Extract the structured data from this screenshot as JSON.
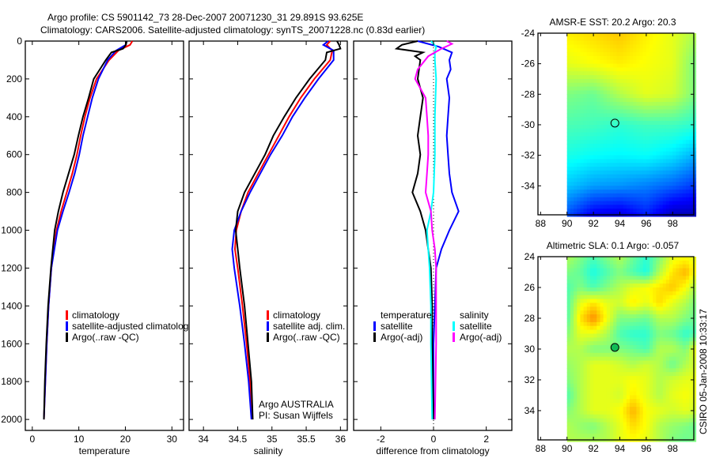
{
  "title_line1": "Argo profile: CS 5901142_73 28-Dec-2007 20071230_31 29.891S 93.625E",
  "title_line2": "Climatology: CARS2006. Satellite-adjusted climatology: synTS_20071228.nc (0.83d earlier)",
  "side_label": "CSIRO 05-Jan-2008 10:33:17",
  "colors": {
    "red": "#ff0000",
    "blue": "#0000ff",
    "black": "#000000",
    "cyan": "#00ffff",
    "magenta": "#ff00ff"
  },
  "chart_data": [
    {
      "type": "line",
      "xlabel": "temperature",
      "ylabel": "",
      "xlim": [
        -1.5,
        32.5
      ],
      "ylim": [
        2058,
        0
      ],
      "xticks": [
        0,
        10,
        20,
        30
      ],
      "xtick_labels": [
        "0",
        "10",
        "20",
        "30"
      ],
      "yticks": [
        0,
        200,
        400,
        600,
        800,
        1000,
        1200,
        1400,
        1600,
        1800,
        2000
      ],
      "ytick_labels": [
        "0",
        "200",
        "400",
        "600",
        "800",
        "1000",
        "1200",
        "1400",
        "1600",
        "1800",
        "2000"
      ],
      "legend": [
        "climatology",
        "satellite-adjusted climatology",
        "Argo(..raw -QC)"
      ],
      "legend_placement": "bottom-right",
      "series": [
        {
          "name": "climatology",
          "color": "#ff0000",
          "depth": [
            0,
            20,
            50,
            100,
            200,
            300,
            400,
            500,
            600,
            700,
            800,
            900,
            1000,
            1200,
            1400,
            1600,
            1800,
            2000
          ],
          "values": [
            21.5,
            21,
            18.5,
            16.5,
            13.8,
            12.4,
            11.3,
            10.4,
            9.6,
            8.6,
            7.4,
            6.2,
            5.2,
            4.1,
            3.5,
            3.1,
            2.8,
            2.5
          ]
        },
        {
          "name": "satellite-adjusted climatology",
          "color": "#0000ff",
          "depth": [
            0,
            20,
            50,
            100,
            200,
            300,
            400,
            500,
            600,
            700,
            800,
            900,
            1000,
            1200,
            1400,
            1600,
            1800,
            2000
          ],
          "values": [
            20.3,
            20.1,
            18,
            16.2,
            14.2,
            12.9,
            11.9,
            10.9,
            10.1,
            9.1,
            7.9,
            6.6,
            5.4,
            4.1,
            3.5,
            3.1,
            2.8,
            2.5
          ]
        },
        {
          "name": "Argo(..raw -QC)",
          "color": "#000000",
          "depth": [
            0,
            20,
            40,
            60,
            100,
            200,
            300,
            400,
            500,
            600,
            700,
            800,
            900,
            1000,
            1200,
            1400,
            1600,
            1800,
            2000
          ],
          "values": [
            20.3,
            20.1,
            19.5,
            17,
            15.8,
            13.2,
            12.1,
            10.9,
            9.9,
            9.0,
            7.8,
            6.6,
            5.6,
            4.8,
            4.0,
            3.4,
            3.0,
            2.7,
            2.5
          ]
        }
      ]
    },
    {
      "type": "line",
      "xlabel": "salinity",
      "xlim": [
        33.79,
        36.1
      ],
      "ylim": [
        2058,
        0
      ],
      "xticks": [
        34,
        34.5,
        35,
        35.5,
        36
      ],
      "xtick_labels": [
        "34",
        "34.5",
        "35",
        "35.5",
        "36"
      ],
      "legend": [
        "climatology",
        "satellite adj. clim.",
        "Argo(..raw -QC)"
      ],
      "legend_placement": "bottom-right",
      "annotation": [
        "Argo AUSTRALIA",
        "PI: Susan Wijffels"
      ],
      "series": [
        {
          "name": "climatology",
          "color": "#ff0000",
          "depth": [
            0,
            20,
            50,
            100,
            200,
            300,
            400,
            500,
            600,
            700,
            800,
            900,
            1000,
            1100,
            1200,
            1400,
            1600,
            1800,
            2000
          ],
          "values": [
            35.85,
            35.8,
            35.88,
            35.85,
            35.62,
            35.42,
            35.25,
            35.1,
            34.95,
            34.8,
            34.65,
            34.55,
            34.48,
            34.46,
            34.5,
            34.57,
            34.63,
            34.68,
            34.71
          ]
        },
        {
          "name": "satellite adj. clim.",
          "color": "#0000ff",
          "depth": [
            0,
            20,
            50,
            100,
            200,
            300,
            400,
            500,
            600,
            700,
            800,
            900,
            1000,
            1100,
            1200,
            1400,
            1600,
            1800,
            2000
          ],
          "values": [
            35.82,
            35.75,
            35.9,
            35.9,
            35.68,
            35.48,
            35.3,
            35.15,
            34.98,
            34.83,
            34.68,
            34.55,
            34.45,
            34.42,
            34.45,
            34.53,
            34.6,
            34.66,
            34.7
          ]
        },
        {
          "name": "Argo(..raw -QC)",
          "color": "#000000",
          "depth": [
            0,
            20,
            40,
            60,
            100,
            200,
            300,
            400,
            500,
            600,
            700,
            800,
            900,
            1000,
            1100,
            1200,
            1400,
            1600,
            1800,
            2000
          ],
          "values": [
            35.95,
            35.98,
            36.0,
            35.8,
            35.78,
            35.55,
            35.35,
            35.18,
            35.02,
            34.9,
            34.75,
            34.6,
            34.5,
            34.47,
            34.5,
            34.53,
            34.6,
            34.65,
            34.7,
            34.72
          ]
        }
      ]
    },
    {
      "type": "line",
      "xlabel": "difference from climatology",
      "xlim": [
        -3.03,
        2.97
      ],
      "ylim": [
        2058,
        0
      ],
      "xticks": [
        -2,
        0,
        2
      ],
      "xtick_labels": [
        "-2",
        "0",
        "2"
      ],
      "legend_groups": [
        {
          "title": "temperature",
          "entries": [
            "satellite",
            "Argo(-adj)"
          ]
        },
        {
          "title": "salinity",
          "entries": [
            "satellite",
            "Argo(-adj)"
          ]
        }
      ],
      "legend_placement": "middle",
      "series": [
        {
          "name": "temperature satellite",
          "color": "#0000ff",
          "depth": [
            0,
            30,
            60,
            100,
            150,
            200,
            300,
            400,
            500,
            600,
            700,
            800,
            900,
            1000,
            1100,
            1200,
            1400,
            1600,
            2000
          ],
          "values": [
            -0.6,
            0.2,
            0.7,
            0.6,
            0.65,
            0.5,
            0.6,
            0.55,
            0.5,
            0.55,
            0.6,
            0.7,
            0.95,
            0.6,
            0.3,
            0.1,
            0.05,
            0.0,
            0.0
          ]
        },
        {
          "name": "temperature Argo(-adj)",
          "color": "#000000",
          "depth": [
            0,
            20,
            40,
            60,
            80,
            100,
            200,
            300,
            400,
            500,
            600,
            700,
            800,
            900,
            1000,
            1100,
            1200,
            1400,
            1600,
            2000
          ],
          "values": [
            -0.6,
            -1.2,
            -1.4,
            -0.4,
            -0.7,
            -0.5,
            -0.6,
            -0.4,
            -0.5,
            -0.6,
            -0.5,
            -0.6,
            -0.8,
            -0.5,
            -0.3,
            -0.2,
            -0.1,
            -0.05,
            -0.05,
            0.0
          ]
        },
        {
          "name": "salinity satellite",
          "color": "#00ffff",
          "depth": [
            0,
            30,
            60,
            100,
            200,
            400,
            600,
            800,
            900,
            1000,
            1100,
            1200,
            1400,
            1600,
            2000
          ],
          "values": [
            -0.1,
            0.1,
            0.05,
            0.05,
            0.1,
            0.05,
            0.05,
            0.0,
            -0.1,
            -0.25,
            -0.2,
            -0.15,
            -0.1,
            -0.1,
            -0.05
          ]
        },
        {
          "name": "salinity Argo(-adj)",
          "color": "#ff00ff",
          "depth": [
            0,
            15,
            40,
            80,
            150,
            200,
            300,
            400,
            500,
            600,
            700,
            800,
            900,
            1000,
            1100,
            1200,
            1400,
            1600,
            2000
          ],
          "values": [
            0.5,
            0.7,
            0.3,
            -0.2,
            -0.6,
            -0.7,
            -0.3,
            -0.25,
            -0.2,
            -0.2,
            -0.25,
            -0.3,
            -0.1,
            -0.05,
            0.05,
            0.1,
            0.1,
            0.1,
            0.05
          ]
        }
      ]
    },
    {
      "type": "heatmap",
      "title": "AMSR-E SST: 20.2 Argo: 20.3",
      "xlim": [
        87.8,
        99.6
      ],
      "ylim": [
        -35.9,
        -24
      ],
      "xticks": [
        88,
        90,
        92,
        94,
        96,
        98
      ],
      "xtick_labels": [
        "88",
        "90",
        "92",
        "94",
        "96",
        "98"
      ],
      "yticks": [
        -24,
        -26,
        -28,
        -30,
        -32,
        -34
      ],
      "ytick_labels": [
        "-24",
        "-26",
        "-28",
        "-30",
        "-32",
        "-34"
      ],
      "data_lon_range": [
        90,
        99.6
      ],
      "data_lat_range": [
        -36,
        -24
      ],
      "grid_lat": [
        -24,
        -26,
        -28,
        -30,
        -32,
        -34,
        -36
      ],
      "grid_lon": [
        90,
        92,
        94,
        96,
        98,
        99.6
      ],
      "normalized_values": [
        [
          0.64,
          0.66,
          0.68,
          0.64,
          0.6,
          0.55
        ],
        [
          0.6,
          0.62,
          0.64,
          0.62,
          0.6,
          0.5
        ],
        [
          0.5,
          0.48,
          0.55,
          0.6,
          0.58,
          0.5
        ],
        [
          0.45,
          0.44,
          0.42,
          0.44,
          0.44,
          0.42
        ],
        [
          0.4,
          0.38,
          0.37,
          0.38,
          0.35,
          0.3
        ],
        [
          0.32,
          0.28,
          0.27,
          0.25,
          0.22,
          0.18
        ],
        [
          0.2,
          0.1,
          0.08,
          0.15,
          0.05,
          0.05
        ]
      ],
      "marker": {
        "lon": 93.625,
        "lat": -29.891
      }
    },
    {
      "type": "heatmap",
      "title": "Altimetric SLA: 0.1 Argo: -0.057",
      "xlim": [
        87.8,
        99.6
      ],
      "ylim": [
        -35.9,
        -24
      ],
      "xticks": [
        88,
        90,
        92,
        94,
        96,
        98
      ],
      "xtick_labels": [
        "88",
        "90",
        "92",
        "94",
        "96",
        "98"
      ],
      "yticks": [
        -24,
        -26,
        -28,
        -30,
        -32,
        -34
      ],
      "ytick_labels": [
        "24",
        "26",
        "28",
        "30",
        "32",
        "34"
      ],
      "data_lon_range": [
        90,
        99.6
      ],
      "data_lat_range": [
        -36,
        -24
      ],
      "grid_lat": [
        -24,
        -25,
        -26,
        -27,
        -28,
        -29,
        -30,
        -31,
        -32,
        -33,
        -34,
        -35,
        -36
      ],
      "grid_lon": [
        90,
        91,
        92,
        93,
        94,
        95,
        96,
        97,
        98,
        99,
        99.6
      ],
      "normalized_values": [
        [
          0.55,
          0.5,
          0.45,
          0.5,
          0.55,
          0.48,
          0.42,
          0.5,
          0.6,
          0.62,
          0.6
        ],
        [
          0.5,
          0.47,
          0.4,
          0.45,
          0.5,
          0.45,
          0.4,
          0.55,
          0.65,
          0.7,
          0.62
        ],
        [
          0.45,
          0.5,
          0.45,
          0.5,
          0.55,
          0.6,
          0.62,
          0.65,
          0.68,
          0.62,
          0.55
        ],
        [
          0.45,
          0.6,
          0.65,
          0.6,
          0.58,
          0.64,
          0.6,
          0.66,
          0.6,
          0.55,
          0.5
        ],
        [
          0.45,
          0.65,
          0.74,
          0.62,
          0.5,
          0.5,
          0.48,
          0.55,
          0.55,
          0.5,
          0.48
        ],
        [
          0.5,
          0.6,
          0.6,
          0.55,
          0.45,
          0.42,
          0.42,
          0.5,
          0.48,
          0.42,
          0.45
        ],
        [
          0.55,
          0.55,
          0.5,
          0.5,
          0.5,
          0.48,
          0.45,
          0.55,
          0.55,
          0.5,
          0.6
        ],
        [
          0.52,
          0.55,
          0.6,
          0.6,
          0.58,
          0.55,
          0.58,
          0.55,
          0.48,
          0.55,
          0.58
        ],
        [
          0.5,
          0.55,
          0.6,
          0.6,
          0.6,
          0.62,
          0.6,
          0.55,
          0.58,
          0.6,
          0.6
        ],
        [
          0.45,
          0.55,
          0.6,
          0.6,
          0.58,
          0.64,
          0.6,
          0.55,
          0.6,
          0.62,
          0.6
        ],
        [
          0.5,
          0.55,
          0.6,
          0.6,
          0.62,
          0.7,
          0.62,
          0.6,
          0.58,
          0.6,
          0.58
        ],
        [
          0.55,
          0.52,
          0.5,
          0.55,
          0.6,
          0.66,
          0.62,
          0.55,
          0.52,
          0.5,
          0.48
        ],
        [
          0.55,
          0.55,
          0.55,
          0.55,
          0.6,
          0.62,
          0.6,
          0.55,
          0.5,
          0.48,
          0.5
        ]
      ],
      "marker": {
        "lon": 93.625,
        "lat": -29.891
      }
    }
  ]
}
